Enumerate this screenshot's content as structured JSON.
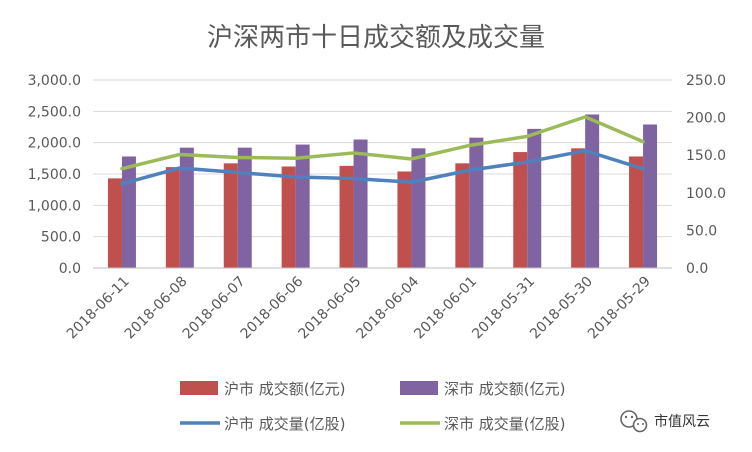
{
  "chart_data": {
    "type": "bar",
    "title": "沪深两市十日成交额及成交量",
    "categories": [
      "2018-06-11",
      "2018-06-08",
      "2018-06-07",
      "2018-06-06",
      "2018-06-05",
      "2018-06-04",
      "2018-06-01",
      "2018-05-31",
      "2018-05-30",
      "2018-05-29"
    ],
    "y_left": {
      "min": 0,
      "max": 3000,
      "step": 500,
      "ticks": [
        "0.0",
        "500.0",
        "1,000.0",
        "1,500.0",
        "2,000.0",
        "2,500.0",
        "3,000.0"
      ]
    },
    "y_right": {
      "min": 0,
      "max": 250,
      "step": 50,
      "ticks": [
        "0.0",
        "50.0",
        "100.0",
        "150.0",
        "200.0",
        "250.0"
      ]
    },
    "series": [
      {
        "name": "沪市 成交额(亿元)",
        "kind": "bar",
        "axis": "left",
        "color": "#c0504d",
        "values": [
          1430,
          1610,
          1670,
          1620,
          1630,
          1540,
          1670,
          1850,
          1910,
          1780
        ]
      },
      {
        "name": "深市 成交额(亿元)",
        "kind": "bar",
        "axis": "left",
        "color": "#8064a2",
        "values": [
          1780,
          1920,
          1920,
          1970,
          2050,
          1910,
          2080,
          2220,
          2450,
          2290
        ]
      },
      {
        "name": "沪市 成交量(亿股)",
        "kind": "line",
        "axis": "right",
        "color": "#4f81bd",
        "values": [
          112,
          133,
          127,
          121,
          119,
          114,
          130,
          141,
          156,
          132
        ]
      },
      {
        "name": "深市 成交量(亿股)",
        "kind": "line",
        "axis": "right",
        "color": "#9bbb59",
        "values": [
          132,
          151,
          147,
          146,
          153,
          145,
          163,
          175,
          201,
          168
        ]
      }
    ],
    "legend_position": "bottom",
    "grid": true
  },
  "watermark": {
    "text": "市值风云",
    "icon": "wechat-icon"
  }
}
